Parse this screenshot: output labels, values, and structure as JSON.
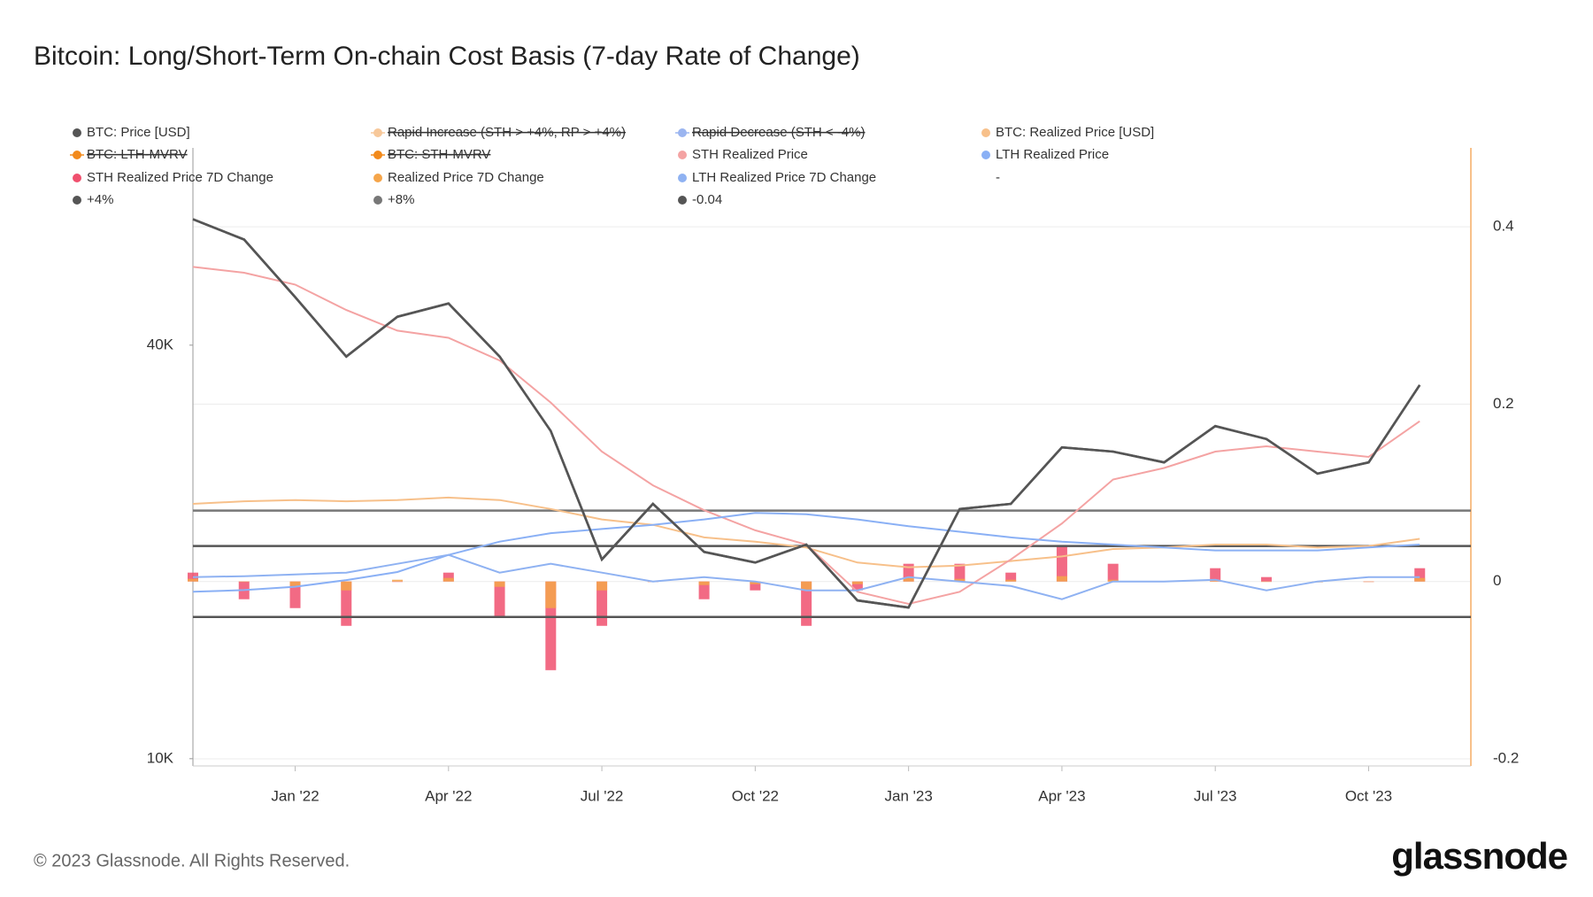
{
  "chart_data": {
    "type": "line",
    "title": "Bitcoin: Long/Short-Term On-chain Cost Basis (7-day Rate of Change)",
    "footer": "© 2023 Glassnode. All Rights Reserved.",
    "brand": "glassnode",
    "x": [
      "2021-11",
      "2021-12",
      "2022-01",
      "2022-02",
      "2022-03",
      "2022-04",
      "2022-05",
      "2022-06",
      "2022-07",
      "2022-08",
      "2022-09",
      "2022-10",
      "2022-11",
      "2022-12",
      "2023-01",
      "2023-02",
      "2023-03",
      "2023-04",
      "2023-05",
      "2023-06",
      "2023-07",
      "2023-08",
      "2023-09",
      "2023-10",
      "2023-11"
    ],
    "xlim": [
      "2021-11",
      "2023-12"
    ],
    "xticks": [
      {
        "value": "2022-01",
        "label": "Jan '22"
      },
      {
        "value": "2022-04",
        "label": "Apr '22"
      },
      {
        "value": "2022-07",
        "label": "Jul '22"
      },
      {
        "value": "2022-10",
        "label": "Oct '22"
      },
      {
        "value": "2023-01",
        "label": "Jan '23"
      },
      {
        "value": "2023-04",
        "label": "Apr '23"
      },
      {
        "value": "2023-07",
        "label": "Jul '23"
      },
      {
        "value": "2023-10",
        "label": "Oct '23"
      }
    ],
    "ylog": true,
    "ylim": [
      9760,
      77500
    ],
    "yticks": [
      {
        "value": 10000,
        "label": "10K"
      },
      {
        "value": 40000,
        "label": "40K"
      }
    ],
    "y2lim": [
      -0.208,
      0.489
    ],
    "y2ticks": [
      -0.2,
      0,
      0.2,
      0.4
    ],
    "grid": true,
    "series": [
      {
        "name": "BTC: Price [USD]",
        "color": "#555555",
        "kind": "line",
        "values": [
          61000,
          57000,
          47000,
          38500,
          44000,
          46000,
          38500,
          30000,
          19500,
          23500,
          20000,
          19300,
          20500,
          17000,
          16600,
          23100,
          23500,
          28400,
          28000,
          27000,
          30500,
          29200,
          26000,
          27000,
          35000
        ]
      },
      {
        "name": "Rapid Increase (STH > +4%, RP > +4%)",
        "color": "#f7c89a",
        "kind": "line",
        "hidden": true
      },
      {
        "name": "Rapid Decrease (STH < -4%)",
        "color": "#9bb5f0",
        "kind": "line",
        "hidden": true
      },
      {
        "name": "BTC: Realized Price [USD]",
        "color": "#f7c08a",
        "kind": "line",
        "values": [
          23500,
          23700,
          23800,
          23700,
          23800,
          24000,
          23800,
          23100,
          22300,
          21900,
          21000,
          20700,
          20300,
          19300,
          19000,
          19100,
          19400,
          19700,
          20200,
          20300,
          20500,
          20500,
          20300,
          20400,
          20900
        ]
      },
      {
        "name": "BTC: LTH-MVRV",
        "color": "#f28a1c",
        "kind": "line",
        "hidden": true
      },
      {
        "name": "BTC: STH-MVRV",
        "color": "#f28a1c",
        "kind": "line",
        "hidden": true
      },
      {
        "name": "STH Realized Price",
        "color": "#f4a3a3",
        "kind": "line",
        "values": [
          52000,
          51000,
          49000,
          45000,
          42000,
          41000,
          38000,
          33000,
          28000,
          25000,
          23000,
          21500,
          20500,
          17500,
          16800,
          17500,
          19500,
          22000,
          25500,
          26500,
          28000,
          28500,
          28000,
          27500,
          31000
        ]
      },
      {
        "name": "LTH Realized Price",
        "color": "#8ab0f5",
        "kind": "line",
        "values": [
          17500,
          17600,
          17800,
          18200,
          18700,
          19800,
          20700,
          21300,
          21600,
          21900,
          22300,
          22800,
          22700,
          22300,
          21800,
          21400,
          21000,
          20700,
          20500,
          20300,
          20100,
          20100,
          20100,
          20300,
          20500
        ]
      },
      {
        "name": "STH Realized Price 7D Change",
        "color": "#f0506e",
        "kind": "bar",
        "axis": "y2",
        "values": [
          0.01,
          -0.02,
          -0.03,
          -0.05,
          0.0,
          0.01,
          -0.04,
          -0.1,
          -0.05,
          0.0,
          -0.02,
          -0.01,
          -0.05,
          -0.01,
          0.02,
          0.02,
          0.01,
          0.04,
          0.02,
          0.0,
          0.015,
          0.005,
          0.0,
          0.0,
          0.015
        ]
      },
      {
        "name": "Realized Price 7D Change",
        "color": "#f5a54a",
        "kind": "bar",
        "axis": "y2",
        "values": [
          0.003,
          0.0,
          -0.005,
          -0.01,
          0.002,
          0.004,
          -0.006,
          -0.03,
          -0.01,
          0.0,
          -0.004,
          -0.003,
          -0.01,
          -0.003,
          0.004,
          0.003,
          0.002,
          0.006,
          0.002,
          0.0,
          0.002,
          0.0,
          -0.001,
          0.0,
          0.004
        ]
      },
      {
        "name": "LTH Realized Price 7D Change",
        "color": "#8fb2f2",
        "kind": "line",
        "axis": "y2",
        "values": [
          0.005,
          0.006,
          0.008,
          0.01,
          0.02,
          0.03,
          0.01,
          0.02,
          0.01,
          0.0,
          0.005,
          0.0,
          -0.01,
          -0.01,
          0.005,
          0.0,
          -0.005,
          -0.02,
          0.0,
          0.0,
          0.002,
          -0.01,
          0.0,
          0.005,
          0.005
        ]
      },
      {
        "name": "-",
        "kind": "none"
      },
      {
        "name": "+4%",
        "color": "#555555",
        "kind": "hline",
        "axis": "y2",
        "value": 0.04
      },
      {
        "name": "+8%",
        "color": "#777777",
        "kind": "hline",
        "axis": "y2",
        "value": 0.08
      },
      {
        "name": "-0.04",
        "color": "#555555",
        "kind": "hline",
        "axis": "y2",
        "value": -0.04
      }
    ]
  }
}
